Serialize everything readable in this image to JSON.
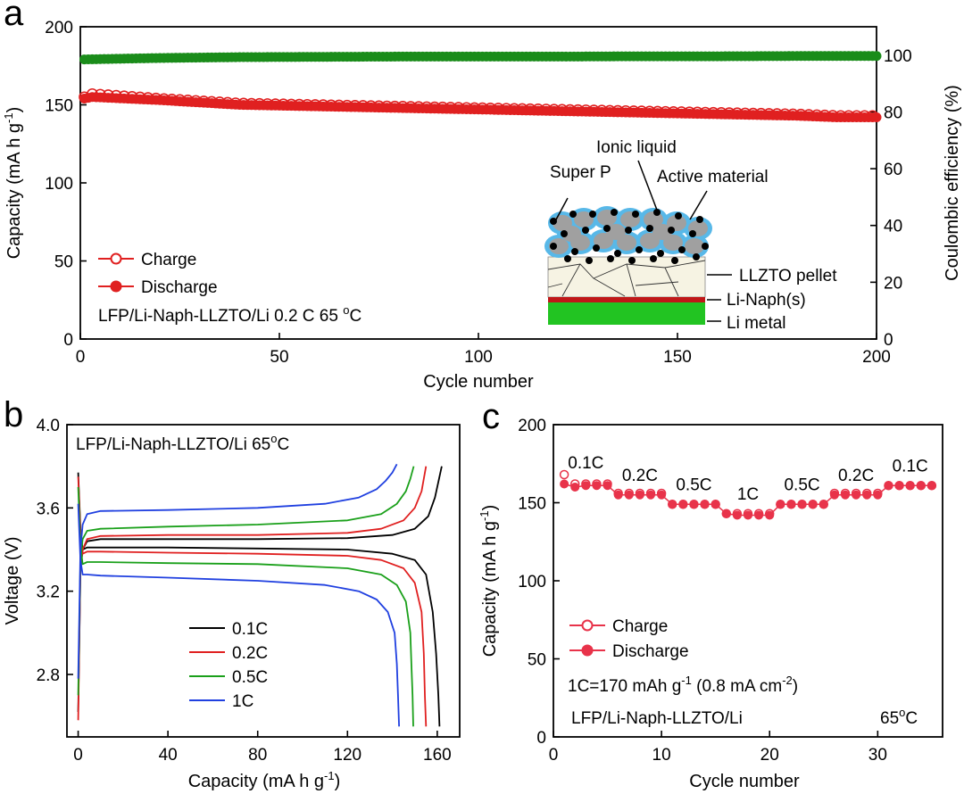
{
  "panels": {
    "a": {
      "label": "a"
    },
    "b": {
      "label": "b"
    },
    "c": {
      "label": "c"
    }
  },
  "colors": {
    "charge": "#e02020",
    "discharge": "#e02020",
    "efficiency": "#1a8c1a",
    "c01": "#000000",
    "c02": "#e02020",
    "c05": "#1aa01a",
    "c1": "#2040e0",
    "rate_pts": "#e8334a",
    "ionic_liquid": "#58b8e8",
    "active_material": "#a0a0a0",
    "super_p": "#000000",
    "llzto": "#f6f3e3",
    "li_naph": "#c01818",
    "li_metal": "#22c422"
  },
  "chart_data": [
    {
      "id": "a",
      "type": "scatter",
      "xlabel": "Cycle number",
      "ylabel": "Capacity (mA h g",
      "ylabel_sup": "-1",
      "ylabel_end": ")",
      "y2label": "Coulombic efficiency (%)",
      "xlim": [
        0,
        200
      ],
      "ylim": [
        0,
        200
      ],
      "y2lim": [
        0,
        110
      ],
      "xticks": [
        0,
        50,
        100,
        150,
        200
      ],
      "yticks": [
        0,
        50,
        100,
        150,
        200
      ],
      "y2ticks": [
        0,
        20,
        40,
        60,
        80,
        100
      ],
      "legend": [
        {
          "name": "Charge",
          "marker": "open"
        },
        {
          "name": "Discharge",
          "marker": "filled"
        }
      ],
      "annotation": {
        "main": "LFP/Li-Naph-LLZTO/Li 0.2 C 65 ",
        "sup": "o",
        "end": "C"
      },
      "series": [
        {
          "name": "Charge",
          "axis": "left",
          "x": [
            1,
            3,
            20,
            40,
            60,
            80,
            100,
            120,
            140,
            160,
            180,
            190,
            200
          ],
          "values": [
            155,
            157,
            154,
            151,
            150,
            149,
            148,
            147,
            146,
            145,
            144,
            143,
            143
          ]
        },
        {
          "name": "Discharge",
          "axis": "left",
          "x": [
            1,
            3,
            20,
            40,
            60,
            80,
            100,
            120,
            140,
            160,
            180,
            190,
            200
          ],
          "values": [
            154,
            155,
            153,
            150,
            149,
            148,
            147,
            146,
            145,
            144,
            143,
            142,
            142
          ]
        },
        {
          "name": "Coulombic efficiency",
          "axis": "right",
          "x": [
            1,
            20,
            40,
            60,
            80,
            100,
            120,
            140,
            160,
            180,
            200
          ],
          "values": [
            98.5,
            99,
            99.3,
            99.4,
            99.5,
            99.5,
            99.5,
            99.6,
            99.6,
            99.7,
            99.7
          ]
        }
      ],
      "inset": {
        "ionic_liquid": "Ionic liquid",
        "super_p": "Super P",
        "active_material": "Active material",
        "llzto": "LLZTO pellet",
        "li_naph": "Li-Naph(s)",
        "li_metal": "Li metal"
      }
    },
    {
      "id": "b",
      "type": "line",
      "xlabel": "Capacity (mA h g",
      "xlabel_sup": "-1",
      "xlabel_end": ")",
      "ylabel": "Voltage (V)",
      "xlim": [
        -5,
        170
      ],
      "ylim": [
        2.5,
        4.0
      ],
      "xticks": [
        0,
        40,
        80,
        120,
        160
      ],
      "yticks": [
        2.8,
        3.2,
        3.6,
        4.0
      ],
      "ytick_labels": [
        "2.8",
        "3.2",
        "3.6",
        "4.0"
      ],
      "annotation": {
        "main": "LFP/Li-Naph-LLZTO/Li   65",
        "sup": "o",
        "end": "C"
      },
      "series": [
        {
          "name": "0.1C",
          "charge": {
            "x": [
              0,
              1,
              2,
              4,
              10,
              40,
              80,
              120,
              140,
              150,
              156,
              159,
              162
            ],
            "y": [
              2.62,
              3.3,
              3.4,
              3.44,
              3.45,
              3.45,
              3.45,
              3.455,
              3.47,
              3.5,
              3.56,
              3.65,
              3.8
            ]
          },
          "discharge": {
            "x": [
              0,
              1,
              2,
              4,
              10,
              40,
              80,
              120,
              140,
              150,
              155,
              158,
              159.5,
              160.5,
              161
            ],
            "y": [
              3.77,
              3.5,
              3.4,
              3.41,
              3.41,
              3.41,
              3.405,
              3.4,
              3.38,
              3.35,
              3.28,
              3.1,
              2.9,
              2.7,
              2.55
            ]
          }
        },
        {
          "name": "0.2C",
          "charge": {
            "x": [
              0,
              1,
              2,
              4,
              10,
              40,
              80,
              120,
              135,
              145,
              150,
              153,
              155
            ],
            "y": [
              2.58,
              3.3,
              3.4,
              3.45,
              3.465,
              3.47,
              3.47,
              3.48,
              3.5,
              3.54,
              3.6,
              3.68,
              3.8
            ]
          },
          "discharge": {
            "x": [
              0,
              1,
              2,
              4,
              10,
              40,
              80,
              120,
              135,
              145,
              150,
              153,
              154,
              154.5,
              155
            ],
            "y": [
              3.75,
              3.48,
              3.38,
              3.39,
              3.39,
              3.385,
              3.38,
              3.37,
              3.35,
              3.31,
              3.24,
              3.1,
              2.9,
              2.7,
              2.55
            ]
          }
        },
        {
          "name": "0.5C",
          "charge": {
            "x": [
              0,
              1,
              2,
              4,
              10,
              40,
              80,
              120,
              135,
              142,
              146,
              148,
              149.5
            ],
            "y": [
              2.7,
              3.35,
              3.45,
              3.49,
              3.5,
              3.51,
              3.52,
              3.54,
              3.57,
              3.62,
              3.68,
              3.74,
              3.8
            ]
          },
          "discharge": {
            "x": [
              0,
              1,
              2,
              4,
              10,
              40,
              80,
              120,
              135,
              142,
              146,
              148,
              148.5,
              149,
              149.3
            ],
            "y": [
              3.7,
              3.42,
              3.33,
              3.34,
              3.34,
              3.335,
              3.33,
              3.31,
              3.28,
              3.23,
              3.15,
              3.0,
              2.85,
              2.7,
              2.55
            ]
          }
        },
        {
          "name": "1C",
          "charge": {
            "x": [
              0,
              1,
              2,
              4,
              10,
              40,
              80,
              110,
              125,
              133,
              137,
              140,
              142
            ],
            "y": [
              2.78,
              3.4,
              3.52,
              3.57,
              3.585,
              3.59,
              3.6,
              3.62,
              3.65,
              3.69,
              3.73,
              3.77,
              3.81
            ]
          },
          "discharge": {
            "x": [
              0,
              1,
              2,
              4,
              10,
              40,
              80,
              110,
              125,
              133,
              138,
              141,
              142,
              142.5,
              143
            ],
            "y": [
              3.62,
              3.35,
              3.28,
              3.28,
              3.275,
              3.265,
              3.25,
              3.23,
              3.2,
              3.16,
              3.1,
              3.0,
              2.85,
              2.7,
              2.55
            ]
          }
        }
      ]
    },
    {
      "id": "c",
      "type": "scatter",
      "xlabel": "Cycle number",
      "ylabel": "Capacity (mA h g",
      "ylabel_sup": "-1",
      "ylabel_end": ")",
      "xlim": [
        0,
        36
      ],
      "ylim": [
        0,
        200
      ],
      "xticks": [
        0,
        10,
        20,
        30
      ],
      "yticks": [
        0,
        50,
        100,
        150,
        200
      ],
      "rate_labels": [
        {
          "text": "0.1C",
          "x": 3,
          "y": 172
        },
        {
          "text": "0.2C",
          "x": 8,
          "y": 164
        },
        {
          "text": "0.5C",
          "x": 13,
          "y": 158
        },
        {
          "text": "1C",
          "x": 18,
          "y": 152
        },
        {
          "text": "0.5C",
          "x": 23,
          "y": 158
        },
        {
          "text": "0.2C",
          "x": 28,
          "y": 164
        },
        {
          "text": "0.1C",
          "x": 33,
          "y": 170
        }
      ],
      "legend": [
        {
          "name": "Charge",
          "marker": "open"
        },
        {
          "name": "Discharge",
          "marker": "filled"
        }
      ],
      "note1": {
        "main": "1C=170 mAh g",
        "sup1": "-1",
        "mid": " (0.8 mA cm",
        "sup2": "-2",
        "end": ")"
      },
      "note2": "LFP/Li-Naph-LLZTO/Li",
      "note3": {
        "main": "65",
        "sup": "o",
        "end": "C"
      },
      "series": [
        {
          "name": "Charge",
          "x": [
            1,
            2,
            3,
            4,
            5,
            6,
            7,
            8,
            9,
            10,
            11,
            12,
            13,
            14,
            15,
            16,
            17,
            18,
            19,
            20,
            21,
            22,
            23,
            24,
            25,
            26,
            27,
            28,
            29,
            30,
            31,
            32,
            33,
            34,
            35
          ],
          "values": [
            168,
            162,
            162,
            162,
            162,
            156,
            156,
            156,
            156,
            156,
            149,
            149,
            149,
            149,
            149,
            143,
            143,
            143,
            143,
            143,
            149,
            149,
            149,
            149,
            149,
            156,
            156,
            156,
            156,
            156,
            161,
            161,
            161,
            161,
            161
          ]
        },
        {
          "name": "Discharge",
          "x": [
            1,
            2,
            3,
            4,
            5,
            6,
            7,
            8,
            9,
            10,
            11,
            12,
            13,
            14,
            15,
            16,
            17,
            18,
            19,
            20,
            21,
            22,
            23,
            24,
            25,
            26,
            27,
            28,
            29,
            30,
            31,
            32,
            33,
            34,
            35
          ],
          "values": [
            162,
            160,
            161,
            161,
            161,
            155,
            155,
            155,
            155,
            155,
            149,
            149,
            149,
            149,
            149,
            143,
            142,
            142,
            142,
            142,
            149,
            149,
            149,
            149,
            149,
            155,
            155,
            155,
            155,
            155,
            161,
            161,
            161,
            161,
            161
          ]
        }
      ]
    }
  ]
}
